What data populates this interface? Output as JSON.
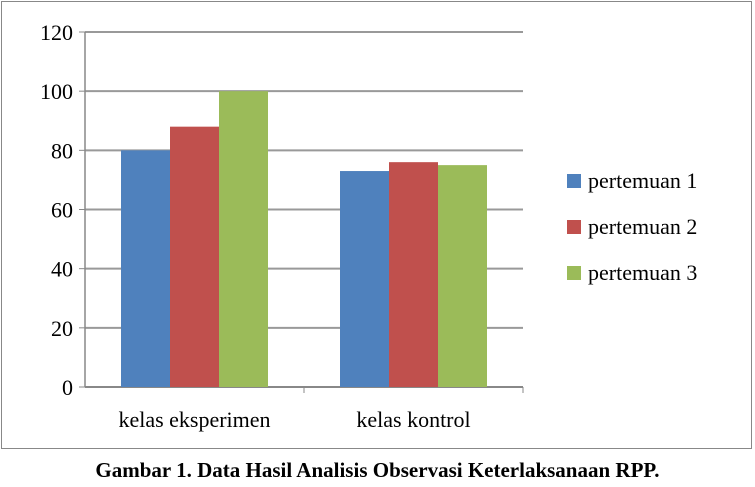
{
  "chart_data": {
    "type": "bar",
    "categories": [
      "kelas eksperimen",
      "kelas kontrol"
    ],
    "series": [
      {
        "name": "pertemuan 1",
        "values": [
          80,
          73
        ],
        "color": "#4F81BD"
      },
      {
        "name": "pertemuan 2",
        "values": [
          88,
          76
        ],
        "color": "#C0504D"
      },
      {
        "name": "pertemuan 3",
        "values": [
          100,
          75
        ],
        "color": "#9BBB59"
      }
    ],
    "yticks": [
      "0",
      "20",
      "40",
      "60",
      "80",
      "100",
      "120"
    ],
    "ylim": [
      0,
      120
    ],
    "grid": true,
    "legend": "right",
    "title": "",
    "xlabel": "",
    "ylabel": ""
  },
  "caption": "Gambar 1. Data Hasil Analisis Observasi Keterlaksanaan RPP."
}
